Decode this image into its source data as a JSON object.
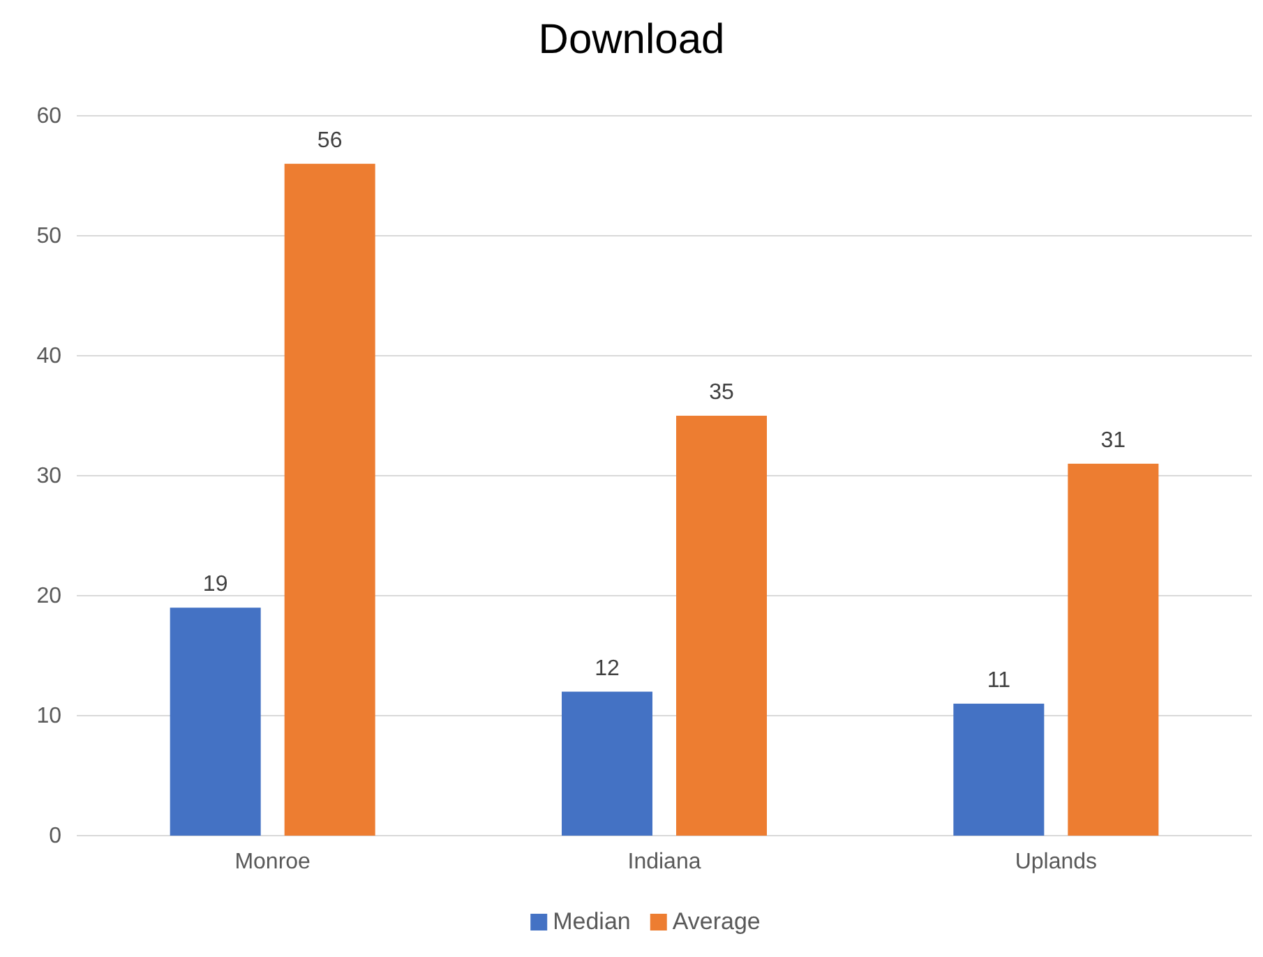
{
  "chart_data": {
    "type": "bar",
    "title": "Download",
    "categories": [
      "Monroe",
      "Indiana",
      "Uplands"
    ],
    "series": [
      {
        "name": "Median",
        "color": "#4472c4",
        "values": [
          19,
          12,
          11
        ]
      },
      {
        "name": "Average",
        "color": "#ed7d31",
        "values": [
          56,
          35,
          31
        ]
      }
    ],
    "ylim": [
      0,
      60
    ],
    "yticks": [
      0,
      10,
      20,
      30,
      40,
      50,
      60
    ],
    "grid": "y",
    "legend": "bottom",
    "data_labels": true
  }
}
